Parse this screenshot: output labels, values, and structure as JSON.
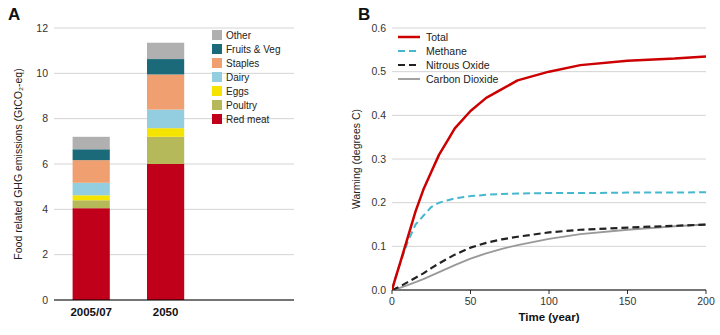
{
  "chart_data": [
    {
      "type": "bar",
      "stacked": true,
      "title": "A",
      "ylabel": "Food related GHG emissions (GtCO₂-eq)",
      "categories": [
        "2005/07",
        "2050"
      ],
      "series": [
        {
          "name": "Red meat",
          "color": "#c0001a",
          "values": [
            4.05,
            6.0
          ]
        },
        {
          "name": "Poultry",
          "color": "#b5b95a",
          "values": [
            0.35,
            1.2
          ]
        },
        {
          "name": "Eggs",
          "color": "#f5e400",
          "values": [
            0.22,
            0.38
          ]
        },
        {
          "name": "Dairy",
          "color": "#92cee0",
          "values": [
            0.55,
            0.82
          ]
        },
        {
          "name": "Staples",
          "color": "#f0a070",
          "values": [
            1.0,
            1.55
          ]
        },
        {
          "name": "Fruits & Veg",
          "color": "#1a6a7a",
          "values": [
            0.48,
            0.68
          ]
        },
        {
          "name": "Other",
          "color": "#b0b0b0",
          "values": [
            0.55,
            0.72
          ]
        }
      ],
      "ylim": [
        0,
        12
      ],
      "yticks": [
        0,
        2,
        4,
        6,
        8,
        10,
        12
      ],
      "grid": true,
      "legend": "upper right"
    },
    {
      "type": "line",
      "title": "B",
      "xlabel": "Time (year)",
      "ylabel": "Warming (degrees C)",
      "x": [
        0,
        2,
        5,
        10,
        15,
        20,
        25,
        30,
        35,
        40,
        50,
        60,
        70,
        80,
        100,
        120,
        150,
        180,
        200
      ],
      "series": [
        {
          "name": "Total",
          "color": "#cc0000",
          "line_style": "solid",
          "values": [
            0,
            0.025,
            0.06,
            0.12,
            0.18,
            0.23,
            0.27,
            0.31,
            0.34,
            0.37,
            0.41,
            0.44,
            0.46,
            0.48,
            0.5,
            0.515,
            0.525,
            0.53,
            0.535
          ]
        },
        {
          "name": "Methane",
          "color": "#45b8d0",
          "line_style": "dashed",
          "values": [
            0,
            0.025,
            0.06,
            0.11,
            0.15,
            0.17,
            0.19,
            0.2,
            0.205,
            0.21,
            0.215,
            0.218,
            0.22,
            0.221,
            0.222,
            0.222,
            0.223,
            0.223,
            0.224
          ]
        },
        {
          "name": "Nitrous Oxide",
          "color": "#222222",
          "line_style": "dashed",
          "values": [
            0,
            0.003,
            0.008,
            0.018,
            0.028,
            0.038,
            0.05,
            0.061,
            0.071,
            0.081,
            0.097,
            0.108,
            0.116,
            0.122,
            0.132,
            0.138,
            0.143,
            0.147,
            0.15
          ]
        },
        {
          "name": "Carbon Dioxide",
          "color": "#999999",
          "line_style": "solid",
          "values": [
            0,
            0.002,
            0.005,
            0.011,
            0.018,
            0.025,
            0.033,
            0.041,
            0.049,
            0.057,
            0.072,
            0.084,
            0.094,
            0.103,
            0.117,
            0.128,
            0.138,
            0.146,
            0.15
          ]
        }
      ],
      "xlim": [
        0,
        200
      ],
      "xticks": [
        0,
        50,
        100,
        150,
        200
      ],
      "ylim": [
        0,
        0.6
      ],
      "yticks": [
        {
          "value": 0,
          "label": "0.0"
        },
        0.1,
        0.2,
        0.3,
        0.4,
        0.5,
        0.6
      ],
      "grid": true,
      "legend": "upper left"
    }
  ]
}
